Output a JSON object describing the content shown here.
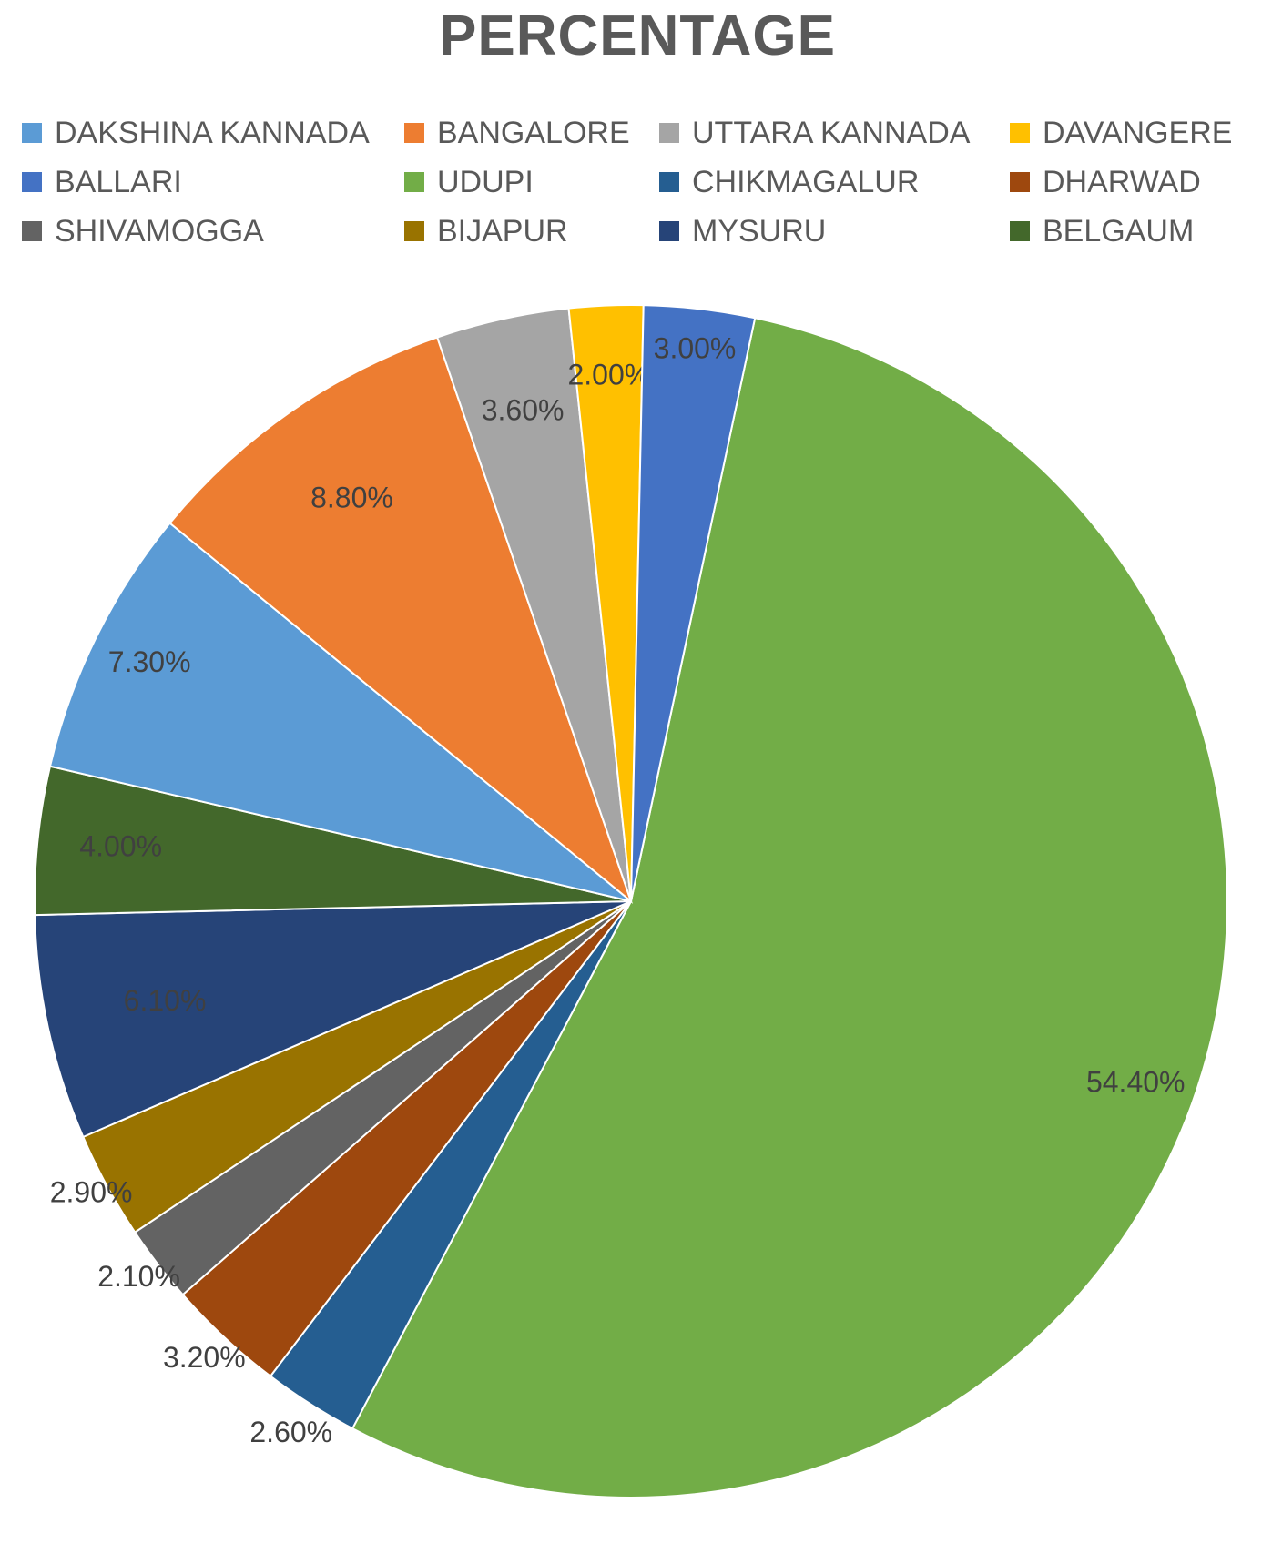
{
  "chart_data": {
    "type": "pie",
    "title": "PERCENTAGE",
    "legend_position": "top",
    "start_angle_deg": 12,
    "slices": [
      {
        "name": "UDUPI",
        "value": 54.4,
        "label": "54.40%",
        "color": "#72AD47"
      },
      {
        "name": "CHIKMAGALUR",
        "value": 2.6,
        "label": "2.60%",
        "color": "#255E91"
      },
      {
        "name": "DHARWAD",
        "value": 3.2,
        "label": "3.20%",
        "color": "#9E480E"
      },
      {
        "name": "SHIVAMOGGA",
        "value": 2.1,
        "label": "2.10%",
        "color": "#636363"
      },
      {
        "name": "BIJAPUR",
        "value": 2.9,
        "label": "2.90%",
        "color": "#997300"
      },
      {
        "name": "MYSURU",
        "value": 6.1,
        "label": "6.10%",
        "color": "#264478"
      },
      {
        "name": "BELGAUM",
        "value": 4.0,
        "label": "4.00%",
        "color": "#43682B"
      },
      {
        "name": "DAKSHINA KANNADA",
        "value": 7.3,
        "label": "7.30%",
        "color": "#5B9BD5"
      },
      {
        "name": "BANGALORE",
        "value": 8.8,
        "label": "8.80%",
        "color": "#ED7D31"
      },
      {
        "name": "UTTARA KANNADA",
        "value": 3.6,
        "label": "3.60%",
        "color": "#A5A5A5"
      },
      {
        "name": "DAVANGERE",
        "value": 2.0,
        "label": "2.00%",
        "color": "#FFC000"
      },
      {
        "name": "BALLARI",
        "value": 3.0,
        "label": "3.00%",
        "color": "#4472C4"
      }
    ],
    "legend_order": [
      "DAKSHINA KANNADA",
      "BANGALORE",
      "UTTARA KANNADA",
      "DAVANGERE",
      "BALLARI",
      "UDUPI",
      "CHIKMAGALUR",
      "DHARWAD",
      "SHIVAMOGGA",
      "BIJAPUR",
      "MYSURU",
      "BELGAUM"
    ]
  }
}
